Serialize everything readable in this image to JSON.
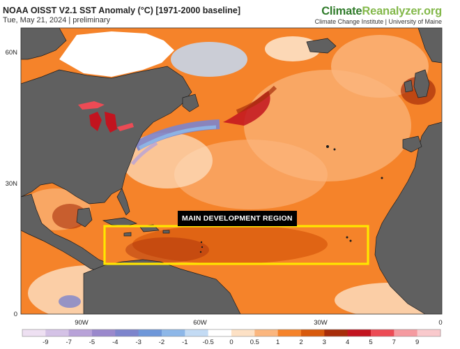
{
  "header": {
    "title": "NOAA OISST V2.1 SST Anomaly (°C) [1971-2000 baseline]",
    "subtitle": "Tue, May 21, 2024 | preliminary"
  },
  "branding": {
    "part1": "Climate",
    "part2": "Reanalyzer",
    "part3": ".org",
    "institute": "Climate Change Institute | University of Maine"
  },
  "map": {
    "lat_labels": [
      "60N",
      "30N",
      "0"
    ],
    "lon_labels": [
      "90W",
      "60W",
      "30W",
      "0"
    ],
    "annotation": "MAIN DEVELOPMENT REGION",
    "region_color": "#ffe600",
    "ocean_color": "#f5832a",
    "land_color": "#606060"
  },
  "colorbar": {
    "ticks": [
      "-9",
      "-7",
      "-5",
      "-4",
      "-3",
      "-2",
      "-1",
      "-0.5",
      "0",
      "0.5",
      "1",
      "2",
      "3",
      "4",
      "5",
      "7",
      "9"
    ],
    "colors": [
      "#eee0f2",
      "#d4c2e6",
      "#b8a2d8",
      "#9a88cc",
      "#7d84cc",
      "#6e97d9",
      "#8db7e8",
      "#c3dbf4",
      "#ffffff",
      "#fde1c5",
      "#fbb67e",
      "#f5832a",
      "#d85a0d",
      "#a72d0a",
      "#c2141f",
      "#ec4b55",
      "#f59aa0",
      "#f9c9cc"
    ]
  }
}
